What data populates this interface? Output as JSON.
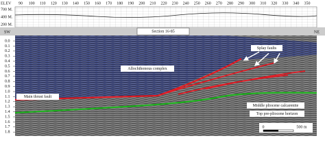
{
  "header": {
    "elev_label": "ELEV",
    "stations": [
      "90",
      "100",
      "110",
      "120",
      "130",
      "140",
      "150",
      "160",
      "170",
      "180",
      "190",
      "200",
      "210",
      "220",
      "230",
      "240",
      "250",
      "260",
      "270",
      "280",
      "290",
      "300",
      "310",
      "320",
      "330",
      "340",
      "350"
    ],
    "elevations": [
      "700 M.",
      "400 M.",
      "200 M."
    ]
  },
  "section": {
    "title": "Section 16-85",
    "left": "SW",
    "right": "NE",
    "depth_ticks": [
      "0.0",
      "0.1",
      "0.2",
      "0.3",
      "0.4",
      "0.5",
      "0.6",
      "0.7",
      "0.8",
      "0.9",
      "1.0",
      "1.1",
      "1.2",
      "1.3",
      "1.4",
      "1.5",
      "1.6",
      "1.7",
      "1.8"
    ]
  },
  "annotations": {
    "splay": "Splay faults",
    "allochthonous": "Allochthonous complex",
    "main_thrust": "Main thrust fault",
    "calcarenite": "Middle pliocene calcarenite",
    "top_pre": "Top pre-pliocene horizon"
  },
  "scale": {
    "start": "0",
    "end": "500 m"
  }
}
